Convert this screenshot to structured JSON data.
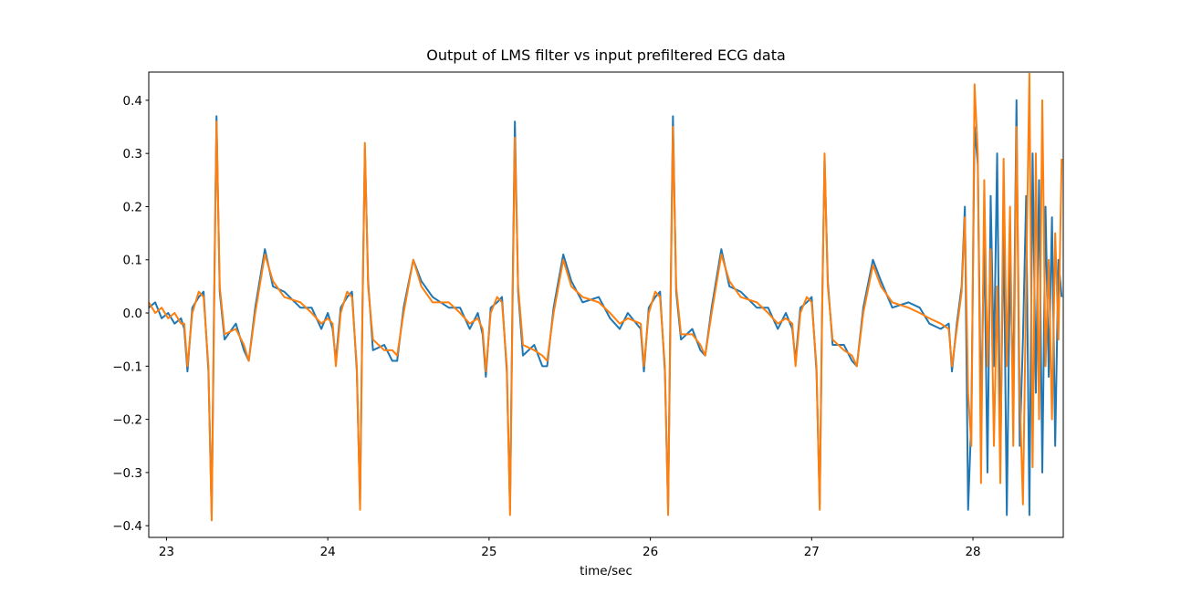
{
  "chart_data": {
    "type": "line",
    "title": "Output of LMS filter vs input prefiltered ECG data",
    "x_label": "time/sec",
    "x": [
      22.89,
      22.93,
      22.97,
      23.01,
      23.05,
      23.09,
      23.11,
      23.13,
      23.16,
      23.2,
      23.23,
      23.26,
      23.28,
      23.295,
      23.31,
      23.33,
      23.36,
      23.43,
      23.48,
      23.51,
      23.55,
      23.61,
      23.66,
      23.73,
      23.83,
      23.9,
      23.96,
      24.0,
      24.03,
      24.05,
      24.08,
      24.12,
      24.15,
      24.18,
      24.2,
      24.215,
      24.23,
      24.25,
      24.28,
      24.35,
      24.4,
      24.43,
      24.47,
      24.53,
      24.58,
      24.65,
      24.75,
      24.82,
      24.88,
      24.93,
      24.96,
      24.98,
      25.01,
      25.05,
      25.08,
      25.11,
      25.13,
      25.145,
      25.16,
      25.18,
      25.21,
      25.28,
      25.33,
      25.36,
      25.4,
      25.46,
      25.51,
      25.58,
      25.68,
      25.75,
      25.81,
      25.86,
      25.94,
      25.96,
      25.99,
      26.03,
      26.06,
      26.09,
      26.11,
      26.125,
      26.14,
      26.16,
      26.19,
      26.26,
      26.31,
      26.34,
      26.38,
      26.44,
      26.49,
      26.56,
      26.66,
      26.73,
      26.79,
      26.84,
      26.88,
      26.9,
      26.93,
      26.97,
      27.0,
      27.03,
      27.05,
      27.065,
      27.08,
      27.1,
      27.13,
      27.2,
      27.25,
      27.28,
      27.32,
      27.38,
      27.43,
      27.5,
      27.6,
      27.67,
      27.73,
      27.8,
      27.85,
      27.87,
      27.9,
      27.93,
      27.95,
      27.97,
      27.99,
      28.01,
      28.03,
      28.05,
      28.07,
      28.09,
      28.11,
      28.13,
      28.15,
      28.17,
      28.19,
      28.21,
      28.23,
      28.25,
      28.27,
      28.29,
      28.31,
      28.33,
      28.35,
      28.37,
      28.39,
      28.41,
      28.43,
      28.45,
      28.47,
      28.49,
      28.51,
      28.53,
      28.55
    ],
    "series": [
      {
        "color": "#1f77b4",
        "values": [
          0.01,
          0.02,
          -0.01,
          0.0,
          -0.02,
          -0.01,
          -0.03,
          -0.11,
          0.01,
          0.03,
          0.04,
          -0.11,
          -0.38,
          0.02,
          0.37,
          0.04,
          -0.05,
          -0.02,
          -0.07,
          -0.09,
          0.01,
          0.12,
          0.05,
          0.04,
          0.01,
          0.01,
          -0.03,
          0.0,
          -0.03,
          -0.09,
          0.01,
          0.03,
          0.04,
          -0.11,
          -0.36,
          0.01,
          0.31,
          0.06,
          -0.07,
          -0.06,
          -0.09,
          -0.09,
          0.01,
          0.1,
          0.06,
          0.03,
          0.01,
          0.01,
          -0.03,
          0.0,
          -0.04,
          -0.12,
          0.01,
          0.02,
          0.03,
          -0.11,
          -0.37,
          0.02,
          0.36,
          0.04,
          -0.08,
          -0.06,
          -0.1,
          -0.1,
          0.01,
          0.11,
          0.06,
          0.02,
          0.03,
          -0.01,
          -0.03,
          0.0,
          -0.03,
          -0.11,
          0.01,
          0.03,
          0.04,
          -0.11,
          -0.37,
          0.02,
          0.37,
          0.04,
          -0.05,
          -0.03,
          -0.07,
          -0.08,
          0.01,
          0.12,
          0.05,
          0.04,
          0.01,
          0.01,
          -0.03,
          0.0,
          -0.03,
          -0.09,
          0.01,
          0.02,
          0.03,
          -0.11,
          -0.36,
          0.01,
          0.29,
          0.06,
          -0.06,
          -0.06,
          -0.09,
          -0.1,
          0.01,
          0.1,
          0.06,
          0.01,
          0.02,
          0.01,
          -0.02,
          -0.03,
          -0.02,
          -0.11,
          -0.02,
          0.05,
          0.2,
          -0.37,
          -0.2,
          0.35,
          0.28,
          -0.2,
          0.15,
          -0.3,
          0.22,
          -0.1,
          0.3,
          -0.28,
          0.18,
          -0.38,
          0.1,
          -0.15,
          0.4,
          -0.25,
          -0.05,
          0.22,
          -0.38,
          0.3,
          -0.15,
          0.25,
          -0.3,
          0.2,
          -0.12,
          0.18,
          -0.25,
          0.1,
          0.03
        ]
      },
      {
        "color": "#ff7f0e",
        "values": [
          0.02,
          0.0,
          0.01,
          -0.01,
          0.0,
          -0.02,
          -0.02,
          -0.1,
          0.0,
          0.04,
          0.03,
          -0.1,
          -0.39,
          0.0,
          0.36,
          0.05,
          -0.04,
          -0.03,
          -0.06,
          -0.09,
          0.0,
          0.11,
          0.06,
          0.03,
          0.02,
          0.0,
          -0.02,
          -0.01,
          -0.02,
          -0.1,
          0.0,
          0.04,
          0.03,
          -0.1,
          -0.37,
          0.0,
          0.32,
          0.05,
          -0.05,
          -0.07,
          -0.07,
          -0.08,
          0.0,
          0.1,
          0.05,
          0.02,
          0.02,
          0.0,
          -0.02,
          -0.01,
          -0.03,
          -0.11,
          0.0,
          0.03,
          0.02,
          -0.1,
          -0.38,
          0.0,
          0.33,
          0.05,
          -0.06,
          -0.07,
          -0.08,
          -0.09,
          0.0,
          0.1,
          0.05,
          0.03,
          0.02,
          0.0,
          -0.02,
          -0.01,
          -0.02,
          -0.1,
          0.0,
          0.04,
          0.03,
          -0.1,
          -0.38,
          0.0,
          0.35,
          0.05,
          -0.04,
          -0.04,
          -0.06,
          -0.08,
          0.0,
          0.11,
          0.06,
          0.03,
          0.02,
          0.0,
          -0.02,
          -0.01,
          -0.02,
          -0.1,
          0.0,
          0.03,
          0.02,
          -0.1,
          -0.37,
          0.0,
          0.3,
          0.05,
          -0.05,
          -0.07,
          -0.08,
          -0.1,
          0.0,
          0.09,
          0.05,
          0.02,
          0.01,
          0.0,
          -0.01,
          -0.02,
          -0.03,
          -0.1,
          -0.03,
          0.04,
          0.18,
          -0.15,
          -0.25,
          0.43,
          0.3,
          -0.32,
          0.25,
          -0.1,
          0.12,
          -0.25,
          0.05,
          -0.32,
          0.29,
          -0.1,
          0.2,
          -0.25,
          0.35,
          -0.15,
          -0.36,
          0.05,
          0.45,
          -0.29,
          0.3,
          -0.2,
          0.4,
          -0.1,
          0.1,
          -0.2,
          0.15,
          -0.05,
          0.29
        ]
      }
    ],
    "xlim": [
      22.89,
      28.56
    ],
    "ylim": [
      -0.422,
      0.453
    ],
    "xticks": [
      23,
      24,
      25,
      26,
      27,
      28
    ],
    "yticks": [
      {
        "value": -0.4,
        "label": "−0.4"
      },
      {
        "value": -0.3,
        "label": "−0.3"
      },
      {
        "value": -0.2,
        "label": "−0.2"
      },
      {
        "value": -0.1,
        "label": "−0.1"
      },
      {
        "value": 0,
        "label": "0.0"
      },
      0.1,
      0.2,
      0.3,
      0.4
    ],
    "grid": false
  }
}
